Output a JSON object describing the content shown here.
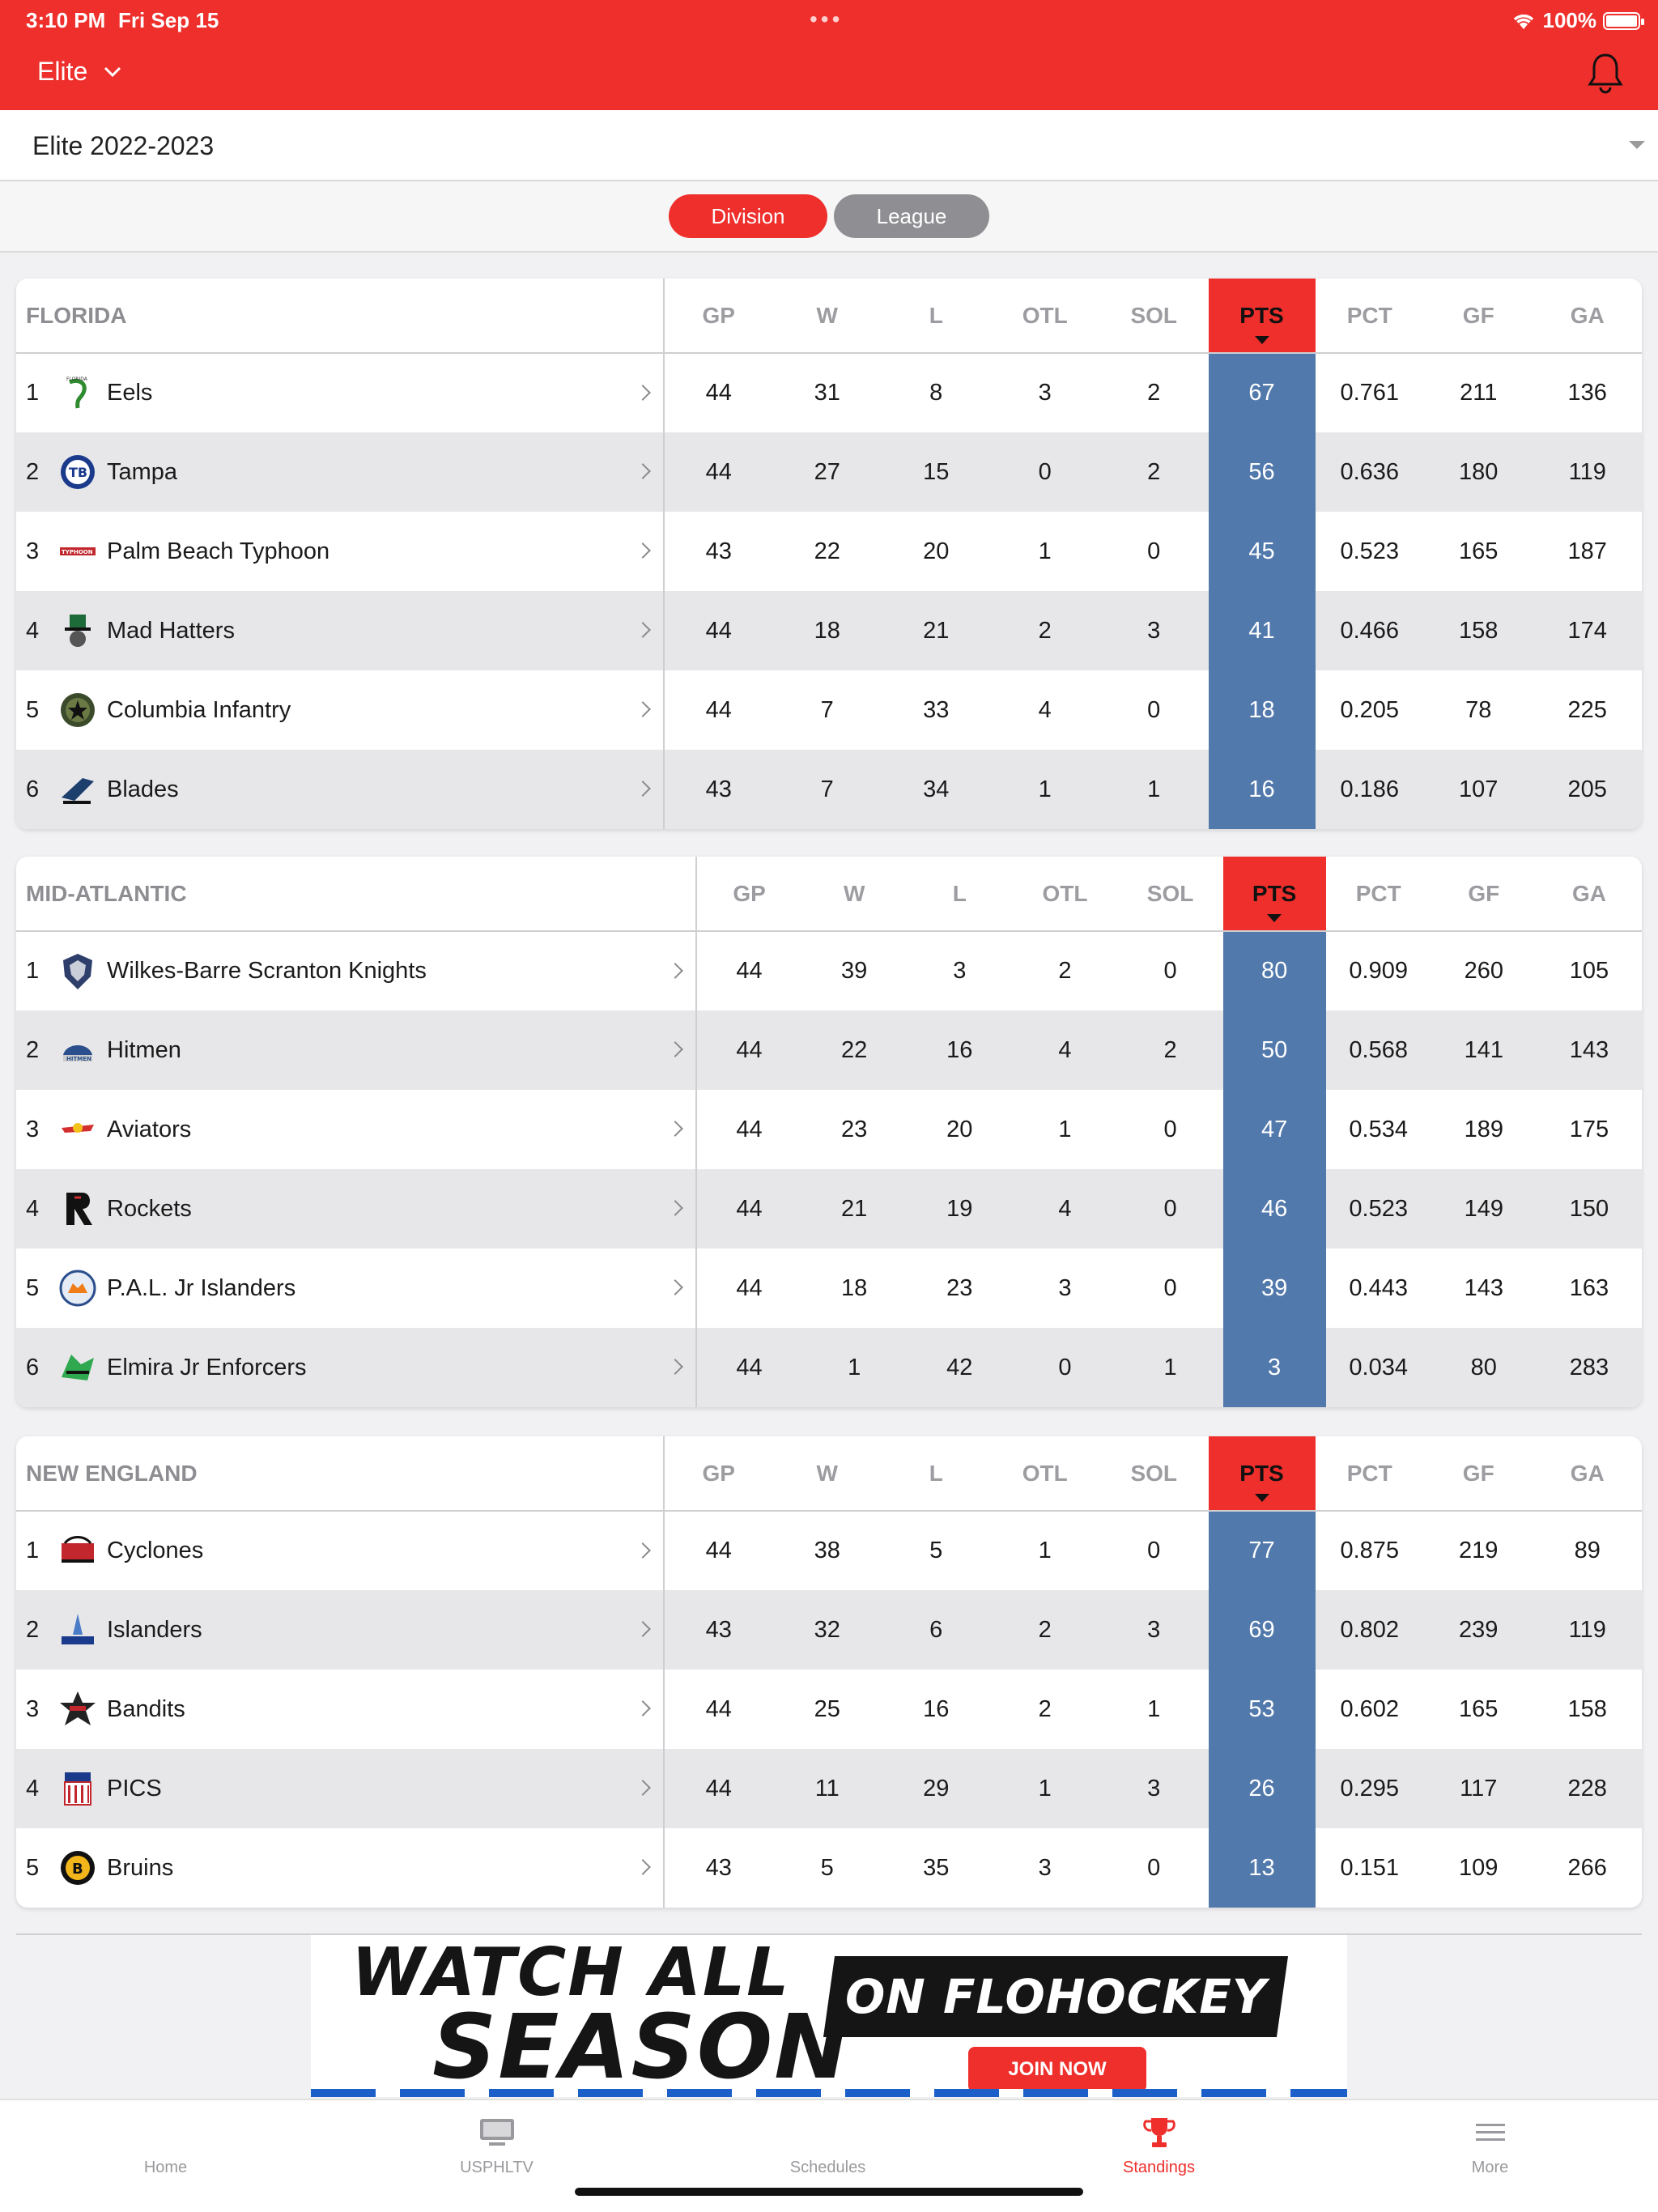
{
  "status": {
    "time": "3:10 PM",
    "date": "Fri Sep 15",
    "battery": "100%"
  },
  "header": {
    "league": "Elite",
    "notification_icon": "bell-icon"
  },
  "season": {
    "selected": "Elite 2022-2023"
  },
  "toggle": {
    "division": "Division",
    "league": "League",
    "active": "division"
  },
  "columns": [
    "GP",
    "W",
    "L",
    "OTL",
    "SOL",
    "PTS",
    "PCT",
    "GF",
    "GA"
  ],
  "colors": {
    "accent": "#ee2f2c",
    "pts_column": "#5279ac",
    "toggle_inactive": "#8f8f93"
  },
  "divisions": [
    {
      "name": "FLORIDA",
      "teams": [
        {
          "rank": "1",
          "name": "Eels",
          "logo": "eels-logo",
          "stats": [
            "44",
            "31",
            "8",
            "3",
            "2",
            "67",
            "0.761",
            "211",
            "136"
          ]
        },
        {
          "rank": "2",
          "name": "Tampa",
          "logo": "tampa-logo",
          "stats": [
            "44",
            "27",
            "15",
            "0",
            "2",
            "56",
            "0.636",
            "180",
            "119"
          ]
        },
        {
          "rank": "3",
          "name": "Palm Beach Typhoon",
          "logo": "typhoon-logo",
          "stats": [
            "43",
            "22",
            "20",
            "1",
            "0",
            "45",
            "0.523",
            "165",
            "187"
          ]
        },
        {
          "rank": "4",
          "name": "Mad Hatters",
          "logo": "mad-hatters-logo",
          "stats": [
            "44",
            "18",
            "21",
            "2",
            "3",
            "41",
            "0.466",
            "158",
            "174"
          ]
        },
        {
          "rank": "5",
          "name": "Columbia Infantry",
          "logo": "columbia-infantry-logo",
          "stats": [
            "44",
            "7",
            "33",
            "4",
            "0",
            "18",
            "0.205",
            "78",
            "225"
          ]
        },
        {
          "rank": "6",
          "name": "Blades",
          "logo": "blades-logo",
          "stats": [
            "43",
            "7",
            "34",
            "1",
            "1",
            "16",
            "0.186",
            "107",
            "205"
          ]
        }
      ]
    },
    {
      "name": "MID-ATLANTIC",
      "teams": [
        {
          "rank": "1",
          "name": "Wilkes-Barre Scranton Knights",
          "logo": "knights-logo",
          "stats": [
            "44",
            "39",
            "3",
            "2",
            "0",
            "80",
            "0.909",
            "260",
            "105"
          ]
        },
        {
          "rank": "2",
          "name": "Hitmen",
          "logo": "hitmen-logo",
          "stats": [
            "44",
            "22",
            "16",
            "4",
            "2",
            "50",
            "0.568",
            "141",
            "143"
          ]
        },
        {
          "rank": "3",
          "name": "Aviators",
          "logo": "aviators-logo",
          "stats": [
            "44",
            "23",
            "20",
            "1",
            "0",
            "47",
            "0.534",
            "189",
            "175"
          ]
        },
        {
          "rank": "4",
          "name": "Rockets",
          "logo": "rockets-logo",
          "stats": [
            "44",
            "21",
            "19",
            "4",
            "0",
            "46",
            "0.523",
            "149",
            "150"
          ]
        },
        {
          "rank": "5",
          "name": "P.A.L. Jr Islanders",
          "logo": "pal-islanders-logo",
          "stats": [
            "44",
            "18",
            "23",
            "3",
            "0",
            "39",
            "0.443",
            "143",
            "163"
          ]
        },
        {
          "rank": "6",
          "name": "Elmira Jr Enforcers",
          "logo": "enforcers-logo",
          "stats": [
            "44",
            "1",
            "42",
            "0",
            "1",
            "3",
            "0.034",
            "80",
            "283"
          ]
        }
      ]
    },
    {
      "name": "NEW ENGLAND",
      "teams": [
        {
          "rank": "1",
          "name": "Cyclones",
          "logo": "cyclones-logo",
          "stats": [
            "44",
            "38",
            "5",
            "1",
            "0",
            "77",
            "0.875",
            "219",
            "89"
          ]
        },
        {
          "rank": "2",
          "name": "Islanders",
          "logo": "islanders-logo",
          "stats": [
            "43",
            "32",
            "6",
            "2",
            "3",
            "69",
            "0.802",
            "239",
            "119"
          ]
        },
        {
          "rank": "3",
          "name": "Bandits",
          "logo": "bandits-logo",
          "stats": [
            "44",
            "25",
            "16",
            "2",
            "1",
            "53",
            "0.602",
            "165",
            "158"
          ]
        },
        {
          "rank": "4",
          "name": "PICS",
          "logo": "pics-logo",
          "stats": [
            "44",
            "11",
            "29",
            "1",
            "3",
            "26",
            "0.295",
            "117",
            "228"
          ]
        },
        {
          "rank": "5",
          "name": "Bruins",
          "logo": "bruins-logo",
          "stats": [
            "43",
            "5",
            "35",
            "3",
            "0",
            "13",
            "0.151",
            "109",
            "266"
          ]
        }
      ]
    }
  ],
  "ad": {
    "line1": "WATCH ALL",
    "line2": "SEASON",
    "brand": "ON FLOHOCKEY",
    "cta": "JOIN NOW"
  },
  "tabs": [
    {
      "label": "Home",
      "icon": "home-icon"
    },
    {
      "label": "USPHLTV",
      "icon": "tv-icon"
    },
    {
      "label": "Schedules",
      "icon": "calendar-icon"
    },
    {
      "label": "Standings",
      "icon": "trophy-icon",
      "active": true
    },
    {
      "label": "More",
      "icon": "menu-icon"
    }
  ]
}
